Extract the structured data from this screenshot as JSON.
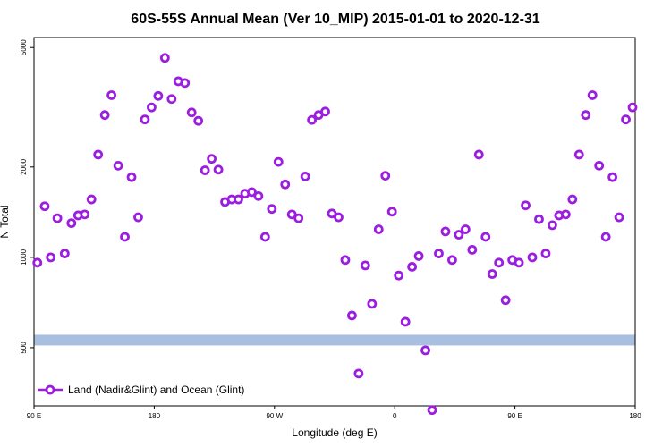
{
  "chart_data": {
    "type": "scatter",
    "title": "60S-55S Annual Mean (Ver 10_MIP)   2015-01-01 to 2020-12-31",
    "xlabel": "Longitude (deg E)",
    "ylabel": "N Total",
    "x_tick_labels": [
      "90 E",
      "180",
      "90 W",
      "0",
      "90 E",
      "180"
    ],
    "x_tick_values": [
      90,
      180,
      270,
      360,
      450,
      540
    ],
    "xlim": [
      90,
      540
    ],
    "y_scale": "log",
    "ylim": [
      320,
      5400
    ],
    "y_tick_labels": [
      "500",
      "1000",
      "2000",
      "5000"
    ],
    "y_tick_values": [
      500,
      1000,
      2000,
      5000
    ],
    "grid": false,
    "legend_position": "bottom-left",
    "band": {
      "value": 530,
      "color": "#a9bfe0"
    },
    "series": [
      {
        "name": "Land (Nadir&Glint) and Ocean (Glint)",
        "color": "#9b1ee0",
        "points": [
          [
            92.5,
            960
          ],
          [
            98,
            1480
          ],
          [
            102.5,
            1000
          ],
          [
            107.5,
            1350
          ],
          [
            113,
            1030
          ],
          [
            118,
            1300
          ],
          [
            123,
            1380
          ],
          [
            128,
            1390
          ],
          [
            133,
            1560
          ],
          [
            138,
            2200
          ],
          [
            143,
            2980
          ],
          [
            148,
            3470
          ],
          [
            153,
            2020
          ],
          [
            158,
            1170
          ],
          [
            163,
            1850
          ],
          [
            168,
            1360
          ],
          [
            173,
            2880
          ],
          [
            178,
            3160
          ],
          [
            183,
            3450
          ],
          [
            188,
            4620
          ],
          [
            193,
            3370
          ],
          [
            198,
            3860
          ],
          [
            203,
            3810
          ],
          [
            208,
            3040
          ],
          [
            213,
            2850
          ],
          [
            218,
            1950
          ],
          [
            223,
            2130
          ],
          [
            228,
            1960
          ],
          [
            233,
            1530
          ],
          [
            238,
            1560
          ],
          [
            243,
            1560
          ],
          [
            248,
            1630
          ],
          [
            253,
            1650
          ],
          [
            258,
            1600
          ],
          [
            263,
            1170
          ],
          [
            268,
            1450
          ],
          [
            273,
            2080
          ],
          [
            278,
            1750
          ],
          [
            283,
            1390
          ],
          [
            288,
            1350
          ],
          [
            293,
            1860
          ],
          [
            298,
            2870
          ],
          [
            303,
            2980
          ],
          [
            308,
            3060
          ],
          [
            313,
            1400
          ],
          [
            318,
            1360
          ],
          [
            323,
            980
          ],
          [
            328,
            640
          ],
          [
            333,
            410
          ],
          [
            338,
            940
          ],
          [
            343,
            700
          ],
          [
            348,
            1240
          ],
          [
            353,
            1870
          ],
          [
            358,
            1420
          ],
          [
            363,
            870
          ],
          [
            368,
            610
          ],
          [
            373,
            930
          ],
          [
            378,
            1010
          ],
          [
            383,
            490
          ],
          [
            388,
            310
          ],
          [
            393,
            1030
          ],
          [
            398,
            1220
          ],
          [
            403,
            980
          ],
          [
            408,
            1190
          ],
          [
            413,
            1240
          ],
          [
            418,
            1060
          ],
          [
            423,
            2200
          ],
          [
            428,
            1170
          ],
          [
            433,
            880
          ],
          [
            438,
            960
          ],
          [
            443,
            720
          ],
          [
            448,
            980
          ],
          [
            453,
            960
          ],
          [
            458,
            1490
          ],
          [
            463,
            1000
          ],
          [
            468,
            1340
          ],
          [
            473,
            1030
          ],
          [
            478,
            1280
          ],
          [
            483,
            1380
          ],
          [
            488,
            1390
          ],
          [
            493,
            1560
          ],
          [
            498,
            2200
          ],
          [
            503,
            2980
          ],
          [
            508,
            3470
          ],
          [
            513,
            2020
          ],
          [
            518,
            1170
          ],
          [
            523,
            1850
          ],
          [
            528,
            1360
          ],
          [
            533,
            2880
          ],
          [
            538,
            3160
          ]
        ]
      }
    ]
  }
}
